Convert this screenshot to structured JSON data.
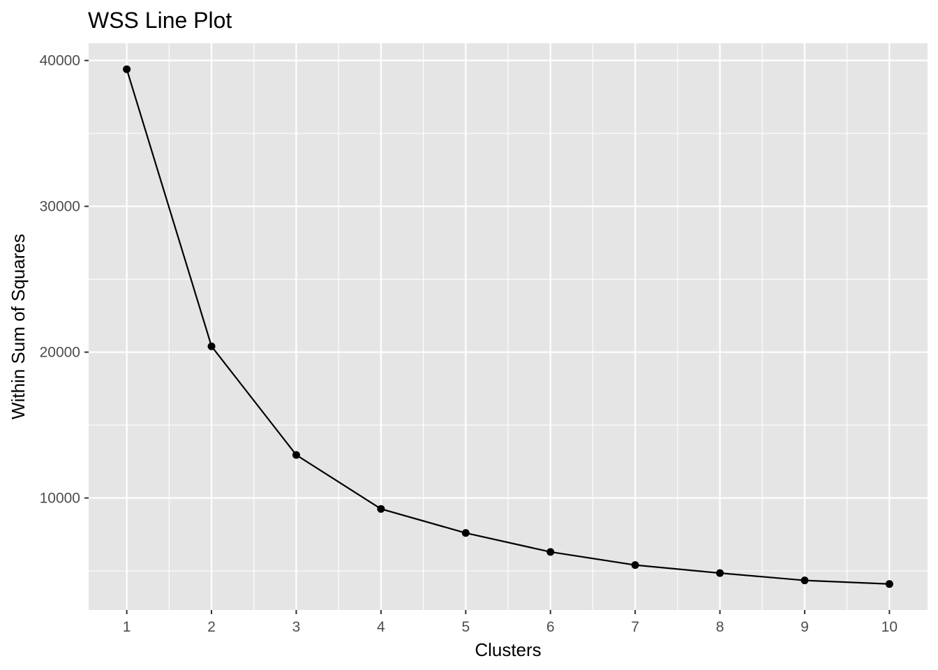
{
  "chart_data": {
    "type": "line",
    "title": "WSS Line Plot",
    "xlabel": "Clusters",
    "ylabel": "Within Sum of Squares",
    "x": [
      1,
      2,
      3,
      4,
      5,
      6,
      7,
      8,
      9,
      10
    ],
    "series": [
      {
        "values": [
          39400,
          20400,
          12950,
          9250,
          7600,
          6300,
          5400,
          4850,
          4350,
          4100
        ]
      }
    ],
    "x_ticks": [
      "1",
      "2",
      "3",
      "4",
      "5",
      "6",
      "7",
      "8",
      "9",
      "10"
    ],
    "y_ticks": [
      "10000",
      "20000",
      "30000",
      "40000"
    ],
    "xlim": [
      0.55,
      10.45
    ],
    "ylim": [
      2320,
      41180
    ],
    "grid": true,
    "legend": "none",
    "colors": {
      "panel": "#e5e5e5",
      "grid": "#ffffff",
      "line": "#000000",
      "point": "#000000",
      "axis_text": "#4d4d4d",
      "title": "#000000"
    }
  }
}
